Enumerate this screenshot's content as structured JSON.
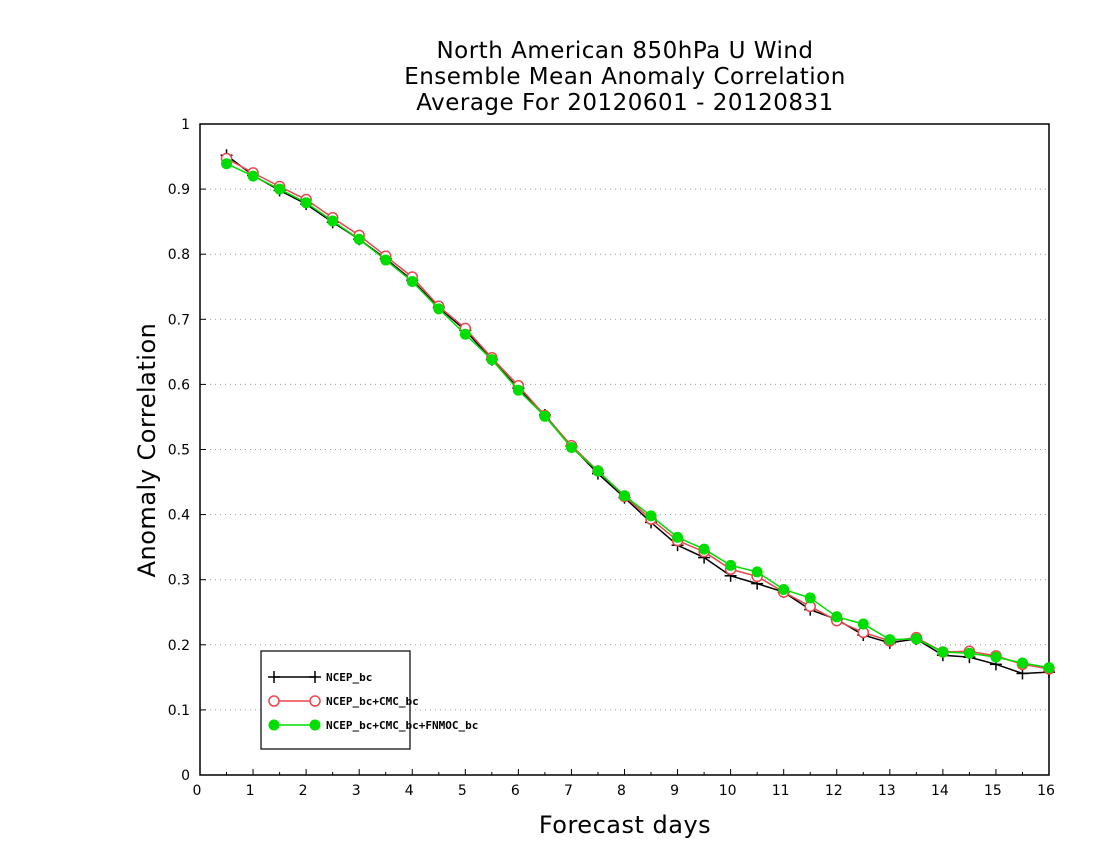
{
  "chart_data": {
    "type": "line",
    "title_lines": [
      "North American 850hPa U Wind",
      "Ensemble Mean Anomaly Correlation",
      "Average For 20120601 - 20120831"
    ],
    "xlabel": "Forecast days",
    "ylabel": "Anomaly Correlation",
    "xlim": [
      0,
      16
    ],
    "ylim": [
      0,
      1
    ],
    "x_ticks": [
      "0",
      "1",
      "2",
      "3",
      "4",
      "5",
      "6",
      "7",
      "8",
      "9",
      "10",
      "11",
      "12",
      "13",
      "14",
      "15",
      "16"
    ],
    "y_ticks": [
      "0",
      "0.1",
      "0.2",
      "0.3",
      "0.4",
      "0.5",
      "0.6",
      "0.7",
      "0.8",
      "0.9",
      "1"
    ],
    "grid": "dotted horizontal",
    "legend_position": "bottom-left",
    "x": [
      0.5,
      1,
      1.5,
      2,
      2.5,
      3,
      3.5,
      4,
      4.5,
      5,
      5.5,
      6,
      6.5,
      7,
      7.5,
      8,
      8.5,
      9,
      9.5,
      10,
      10.5,
      11,
      11.5,
      12,
      12.5,
      13,
      13.5,
      14,
      14.5,
      15,
      15.5,
      16
    ],
    "series": [
      {
        "name": "NCEP_bc",
        "color": "#000000",
        "marker": "plus",
        "values": [
          0.952,
          0.921,
          0.898,
          0.877,
          0.849,
          0.823,
          0.793,
          0.76,
          0.718,
          0.683,
          0.638,
          0.594,
          0.553,
          0.505,
          0.463,
          0.426,
          0.388,
          0.353,
          0.334,
          0.306,
          0.294,
          0.281,
          0.254,
          0.239,
          0.215,
          0.203,
          0.209,
          0.184,
          0.181,
          0.17,
          0.156,
          0.158
        ]
      },
      {
        "name": "NCEP_bc+CMC_bc",
        "color": "#e8474c",
        "marker": "open-circle",
        "values": [
          0.947,
          0.925,
          0.904,
          0.884,
          0.856,
          0.829,
          0.797,
          0.765,
          0.72,
          0.686,
          0.641,
          0.598,
          0.552,
          0.506,
          0.467,
          0.428,
          0.393,
          0.36,
          0.343,
          0.316,
          0.305,
          0.281,
          0.259,
          0.237,
          0.219,
          0.206,
          0.211,
          0.189,
          0.19,
          0.183,
          0.17,
          0.163
        ]
      },
      {
        "name": "NCEP_bc+CMC_bc+FNMOC_bc",
        "color": "#00dd00",
        "marker": "filled-circle",
        "values": [
          0.939,
          0.92,
          0.9,
          0.879,
          0.851,
          0.823,
          0.791,
          0.758,
          0.716,
          0.677,
          0.638,
          0.591,
          0.551,
          0.503,
          0.467,
          0.429,
          0.398,
          0.365,
          0.347,
          0.322,
          0.312,
          0.285,
          0.272,
          0.243,
          0.232,
          0.208,
          0.209,
          0.189,
          0.187,
          0.181,
          0.172,
          0.165
        ]
      }
    ]
  }
}
